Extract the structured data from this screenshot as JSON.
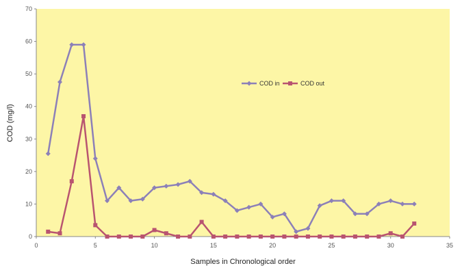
{
  "chart_data": {
    "type": "line",
    "xlabel": "Samples in Chronological order",
    "ylabel": "COD (mg/l)",
    "xlim": [
      0,
      35
    ],
    "ylim": [
      0,
      70
    ],
    "xticks": [
      0,
      5,
      10,
      15,
      20,
      25,
      30,
      35
    ],
    "yticks": [
      0,
      10,
      20,
      30,
      40,
      50,
      60,
      70
    ],
    "grid": false,
    "legend_position": "center-right",
    "plot_background": "#fdf6a6",
    "x": [
      1,
      2,
      3,
      4,
      5,
      6,
      7,
      8,
      9,
      10,
      11,
      12,
      13,
      14,
      15,
      16,
      17,
      18,
      19,
      20,
      21,
      22,
      23,
      24,
      25,
      26,
      27,
      28,
      29,
      30,
      31,
      32
    ],
    "series": [
      {
        "name": "COD in",
        "color": "#8c80b8",
        "marker": "diamond",
        "values": [
          25.5,
          47.5,
          59,
          59,
          24,
          11,
          15,
          11,
          11.5,
          15,
          15.5,
          16,
          17,
          13.5,
          13,
          11,
          8,
          9,
          10,
          6,
          7,
          1.5,
          2.5,
          9.5,
          11,
          11,
          7,
          7,
          10,
          11,
          10,
          10
        ]
      },
      {
        "name": "COD out",
        "color": "#b85470",
        "marker": "square",
        "values": [
          1.5,
          1,
          17,
          37,
          3.5,
          0,
          0,
          0,
          0,
          2,
          1,
          0,
          0,
          4.5,
          0,
          0,
          0,
          0,
          0,
          0,
          0,
          0,
          0,
          0,
          0,
          0,
          0,
          0,
          0,
          1,
          0,
          4
        ]
      }
    ]
  }
}
